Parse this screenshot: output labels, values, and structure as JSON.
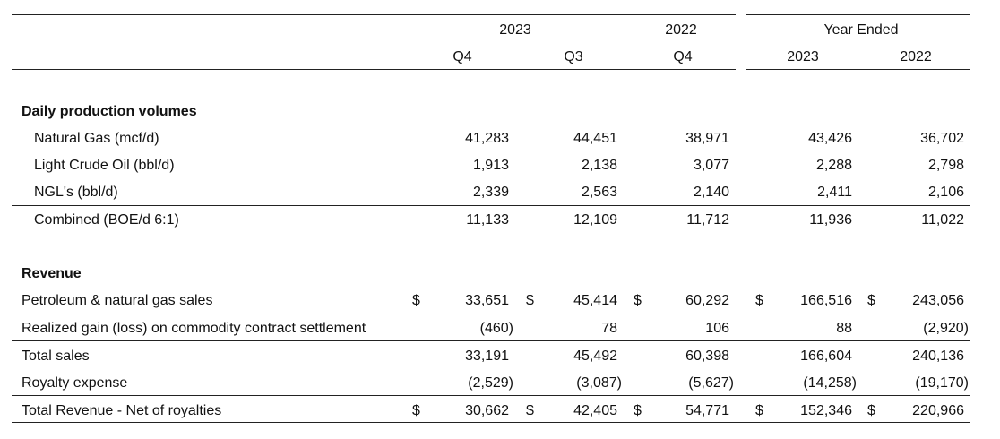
{
  "header": {
    "groups": [
      "2023",
      "2022",
      "Year Ended"
    ],
    "columns": [
      "Q4",
      "Q3",
      "Q4",
      "2023",
      "2022"
    ]
  },
  "sections": [
    {
      "title": "Daily production volumes",
      "rows": [
        {
          "label": "Natural Gas (mcf/d)",
          "values": [
            "41,283",
            "44,451",
            "38,971",
            "43,426",
            "36,702"
          ]
        },
        {
          "label": "Light Crude Oil (bbl/d)",
          "values": [
            "1,913",
            "2,138",
            "3,077",
            "2,288",
            "2,798"
          ]
        },
        {
          "label": "NGL's (bbl/d)",
          "values": [
            "2,339",
            "2,563",
            "2,140",
            "2,411",
            "2,106"
          ]
        },
        {
          "label": "Combined (BOE/d 6:1)",
          "values": [
            "11,133",
            "12,109",
            "11,712",
            "11,936",
            "11,022"
          ]
        }
      ]
    },
    {
      "title": "Revenue",
      "rows": [
        {
          "label": "Petroleum & natural gas sales",
          "currency": "$",
          "values": [
            "33,651",
            "45,414",
            "60,292",
            "166,516",
            "243,056"
          ]
        },
        {
          "label": "Realized gain (loss) on commodity contract settlement",
          "values": [
            "(460)",
            "78",
            "106",
            "88",
            "(2,920)"
          ]
        },
        {
          "label": "Total sales",
          "values": [
            "33,191",
            "45,492",
            "60,398",
            "166,604",
            "240,136"
          ]
        },
        {
          "label": "Royalty expense",
          "values": [
            "(2,529)",
            "(3,087)",
            "(5,627)",
            "(14,258)",
            "(19,170)"
          ]
        },
        {
          "label": "Total Revenue - Net of royalties",
          "currency": "$",
          "values": [
            "30,662",
            "42,405",
            "54,771",
            "152,346",
            "220,966"
          ]
        }
      ]
    }
  ]
}
